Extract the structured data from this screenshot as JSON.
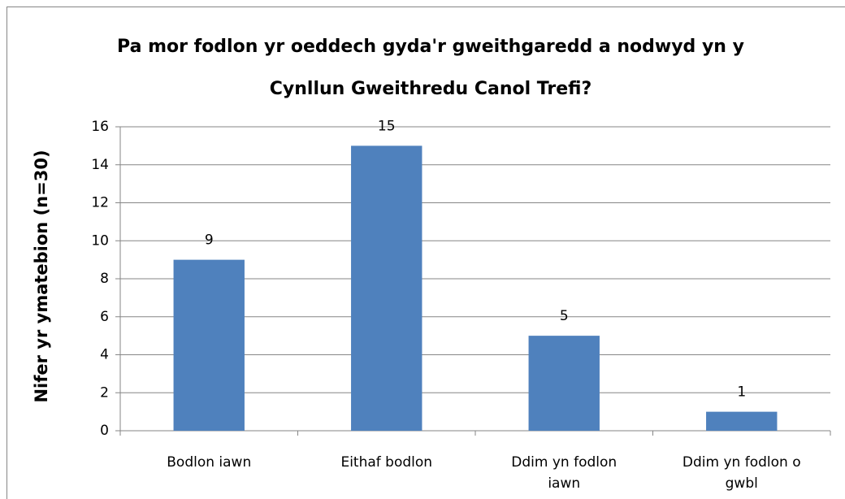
{
  "chart_data": {
    "type": "bar",
    "title": "Pa mor fodlon yr oeddech gyda'r gweithgaredd a nodwyd yn y Cynllun Gweithredu Canol Trefi?",
    "y_label": "Nifer yr ymatebion (n=30)",
    "categories": [
      "Bodlon iawn",
      "Eithaf bodlon",
      "Ddim yn fodlon iawn",
      "Ddim yn fodlon o gwbl"
    ],
    "values": [
      9,
      15,
      5,
      1
    ],
    "color": "#4f81bd",
    "ylim": [
      0,
      16
    ],
    "yticks": [
      0,
      2,
      4,
      6,
      8,
      10,
      12,
      14,
      16
    ],
    "grid": true
  }
}
